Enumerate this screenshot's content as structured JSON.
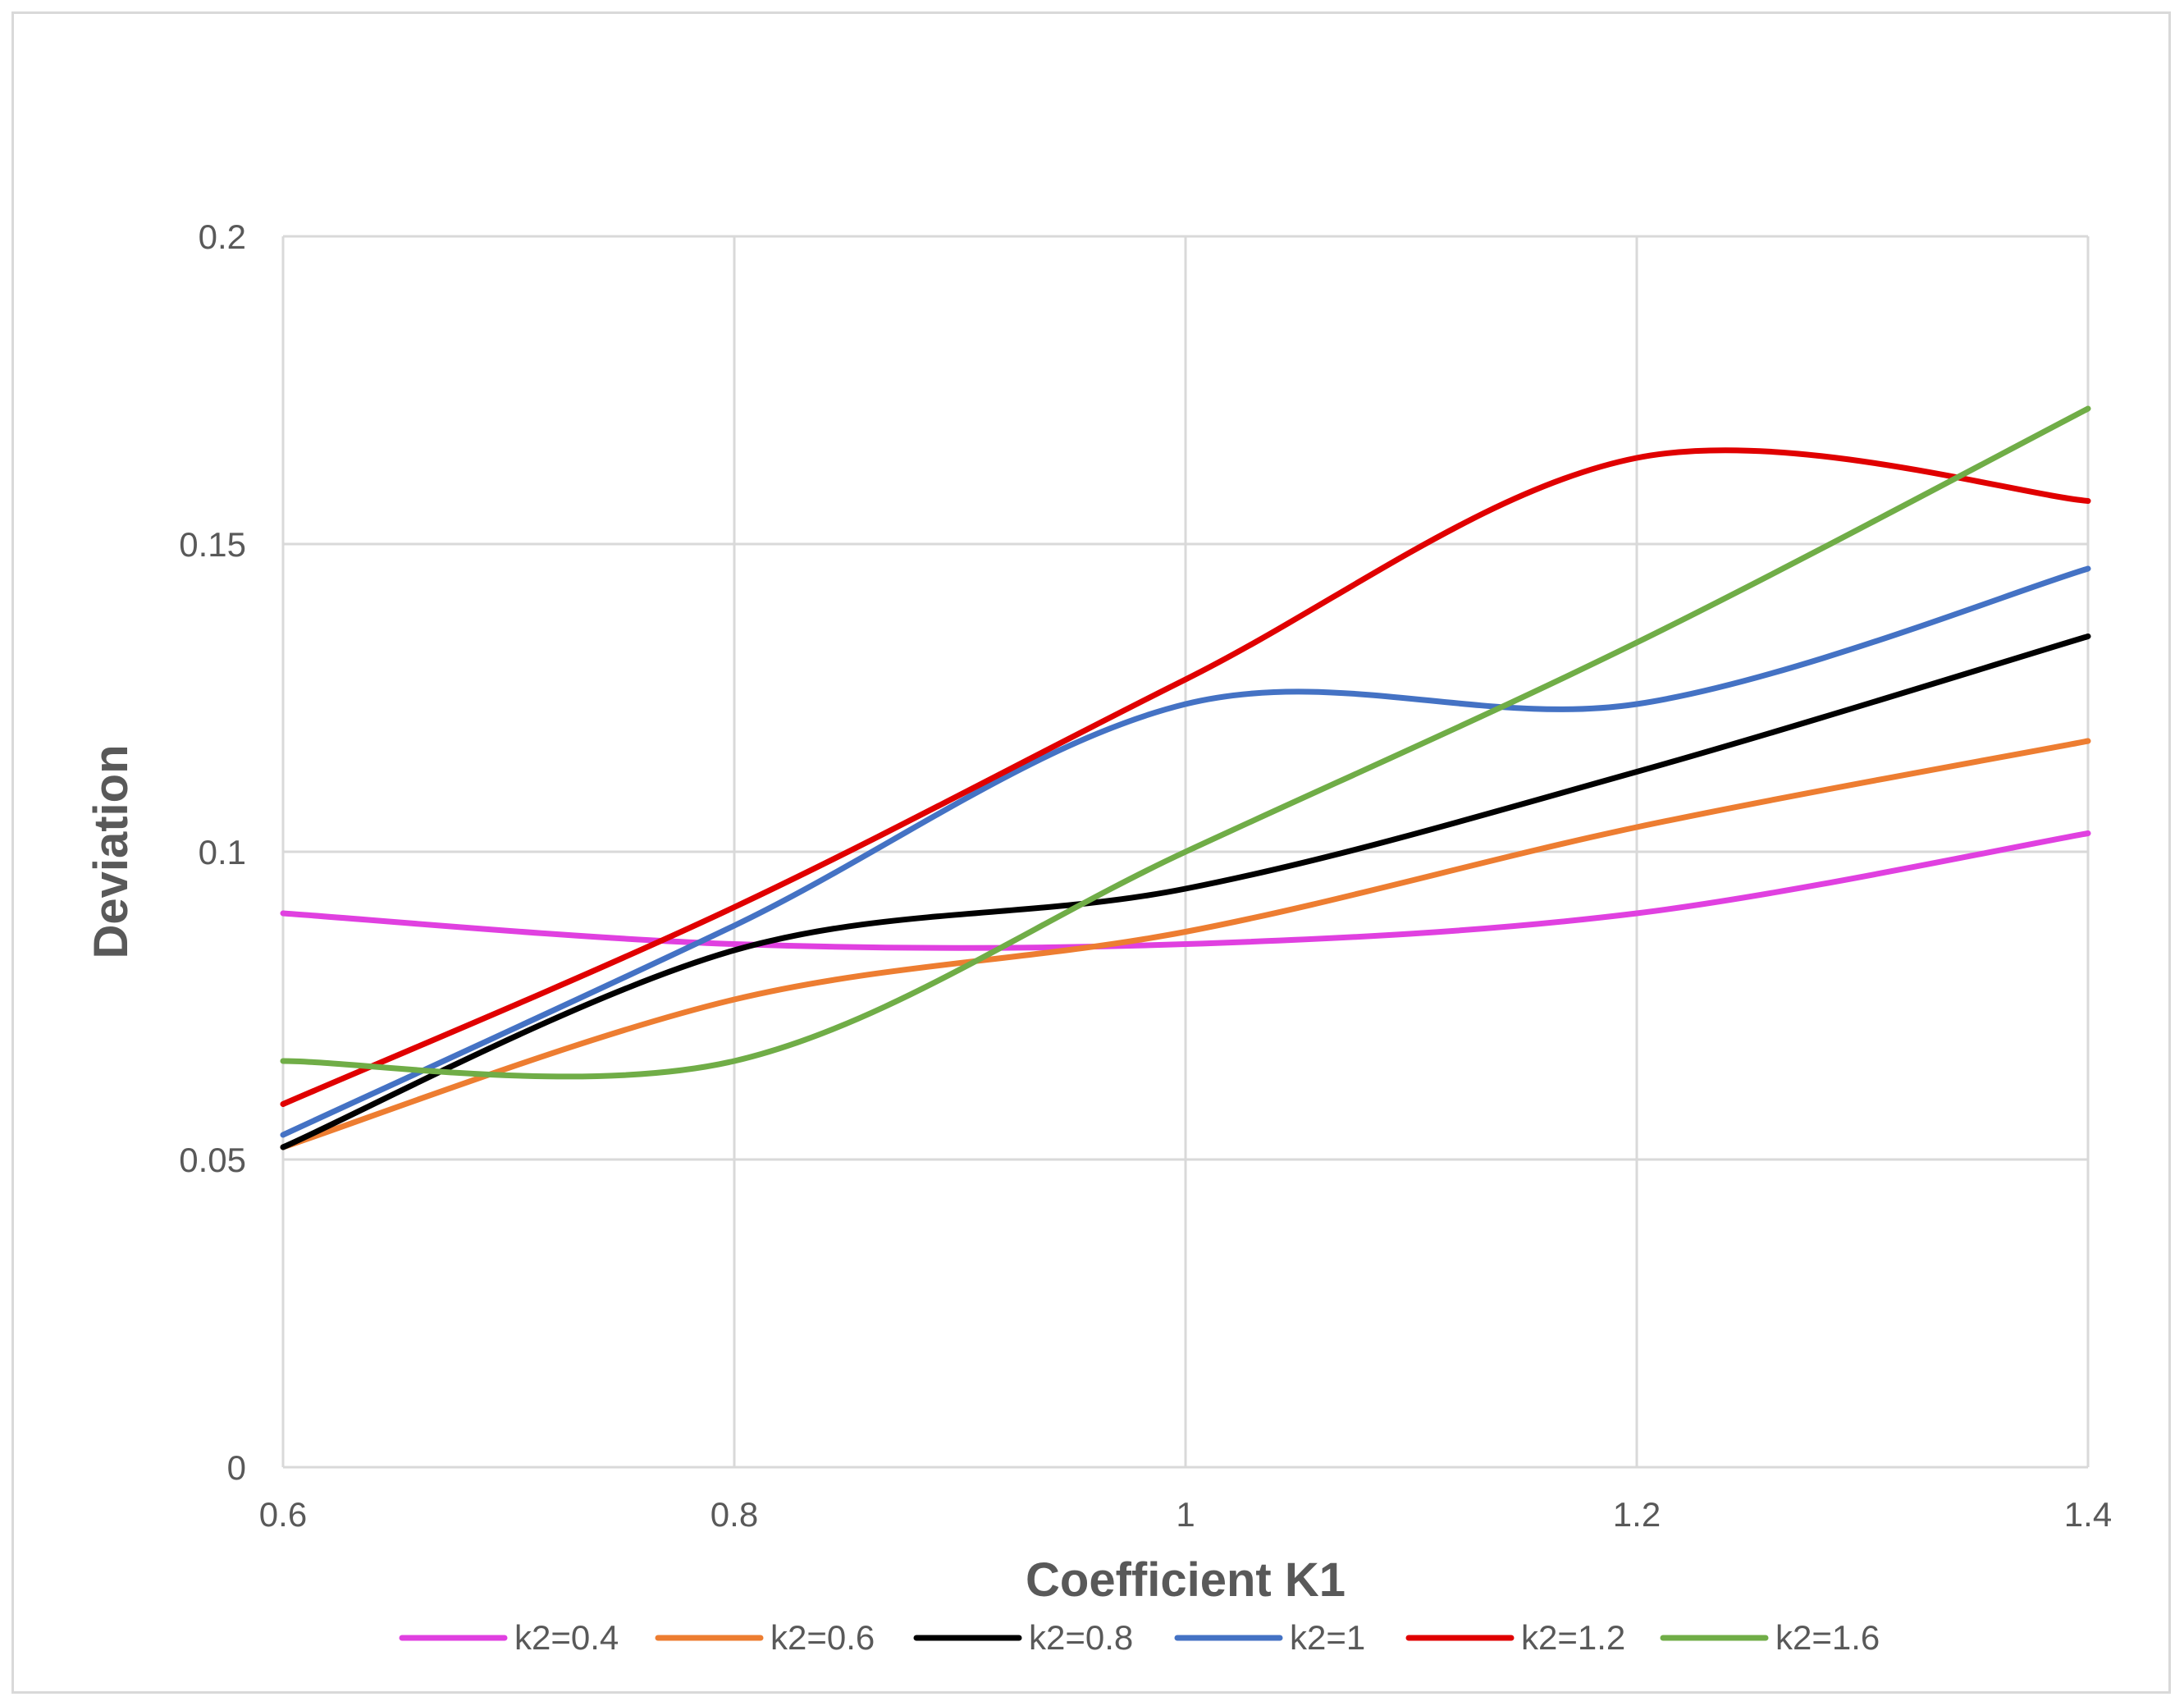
{
  "chart_data": {
    "type": "line",
    "title": "",
    "xlabel": "Coefficient K1",
    "ylabel": "Deviation",
    "xlim": [
      0.6,
      1.4
    ],
    "ylim": [
      0,
      0.2
    ],
    "x_ticks": [
      "0.6",
      "0.8",
      "1",
      "1.2",
      "1.4"
    ],
    "y_ticks": [
      "0",
      "0.05",
      "0.1",
      "0.15",
      "0.2"
    ],
    "grid": true,
    "smooth": true,
    "legend_position": "bottom",
    "x": [
      0.6,
      0.8,
      1.0,
      1.2,
      1.4
    ],
    "series": [
      {
        "name": "k2=0.4",
        "color": "#e040e0",
        "values": [
          0.09,
          0.085,
          0.085,
          0.09,
          0.103
        ]
      },
      {
        "name": "k2=0.6",
        "color": "#ed7d31",
        "values": [
          0.052,
          0.076,
          0.087,
          0.104,
          0.118
        ]
      },
      {
        "name": "k2=0.8",
        "color": "#000000",
        "values": [
          0.052,
          0.084,
          0.094,
          0.113,
          0.135
        ]
      },
      {
        "name": "k2=1",
        "color": "#4472c4",
        "values": [
          0.054,
          0.088,
          0.124,
          0.124,
          0.146
        ]
      },
      {
        "name": "k2=1.2",
        "color": "#e00000",
        "values": [
          0.059,
          0.091,
          0.128,
          0.164,
          0.157
        ]
      },
      {
        "name": "k2=1.6",
        "color": "#70ad47",
        "values": [
          0.066,
          0.066,
          0.1,
          0.134,
          0.172
        ]
      }
    ]
  }
}
